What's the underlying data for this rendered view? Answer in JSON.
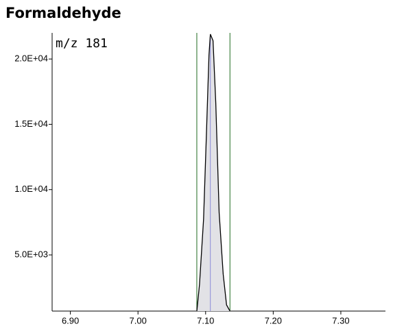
{
  "chart_data": {
    "type": "area",
    "title": "Formaldehyde",
    "annotation": "m/z 181",
    "x": [
      7.087,
      7.091,
      7.097,
      7.101,
      7.105,
      7.107,
      7.111,
      7.115,
      7.12,
      7.126,
      7.131,
      7.136
    ],
    "values": [
      700,
      2750,
      7730,
      14000,
      20300,
      21900,
      21400,
      16650,
      8250,
      3530,
      1170,
      700
    ],
    "color": "#000000",
    "fill": "#e2e2e6",
    "markers": [
      7.087,
      7.136
    ],
    "marker_color": "#1f6b1f",
    "apex": 7.107,
    "apex_color": "#8a8ad8",
    "xlim": [
      6.873,
      7.366
    ],
    "xticks": [
      {
        "value": 6.9,
        "label": "6.90"
      },
      {
        "value": 7.0,
        "label": "7.00"
      },
      {
        "value": 7.1,
        "label": "7.10"
      },
      {
        "value": 7.2,
        "label": "7.20"
      },
      {
        "value": 7.3,
        "label": "7.30"
      }
    ],
    "ylim": [
      700,
      22000
    ],
    "yticks": [
      {
        "value": 5000,
        "label": "5.0E+03"
      },
      {
        "value": 10000,
        "label": "1.0E+04"
      },
      {
        "value": 15000,
        "label": "1.5E+04"
      },
      {
        "value": 20000,
        "label": "2.0E+04"
      }
    ]
  }
}
